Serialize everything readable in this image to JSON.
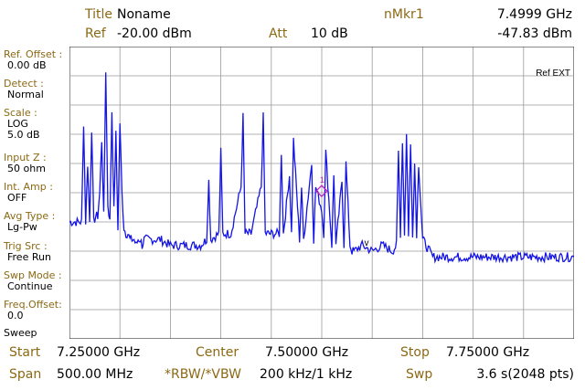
{
  "header": {
    "title_label": "Title",
    "title_value": "Noname",
    "ref_label": "Ref",
    "ref_value": "-20.00 dBm",
    "att_label": "Att",
    "att_value": "10 dB",
    "marker_label": "nMkr1",
    "marker_freq": "7.4999 GHz",
    "marker_level": "-47.83 dBm"
  },
  "sidebar": [
    {
      "label": "Ref. Offset :",
      "value": "0.00 dB"
    },
    {
      "label": "Detect :",
      "value": "Normal"
    },
    {
      "label": "Scale :",
      "value": "LOG",
      "value2": "5.0 dB"
    },
    {
      "label": "Input Z :",
      "value": "50 ohm"
    },
    {
      "label": "Int. Amp :",
      "value": "OFF"
    },
    {
      "label": "Avg Type :",
      "value": "Lg-Pw"
    },
    {
      "label": "Trig Src :",
      "value": "Free Run"
    },
    {
      "label": "Swp Mode :",
      "value": "Continue"
    },
    {
      "label": "Freq.Offset:",
      "value": "0.0"
    },
    {
      "label": "",
      "value": "Sweep"
    }
  ],
  "plot": {
    "ref_ext": "Ref EXT",
    "marker_number": "1",
    "vbw_marker": "v",
    "trace_color": "#1414e6",
    "grid_color": "#9a9a9a",
    "marker_color": "#c020c0"
  },
  "footer": {
    "start_label": "Start",
    "start_value": "7.25000 GHz",
    "center_label": "Center",
    "center_value": "7.50000 GHz",
    "stop_label": "Stop",
    "stop_value": "7.75000 GHz",
    "span_label": "Span",
    "span_value": "500.00 MHz",
    "rbw_label": "*RBW/*VBW",
    "rbw_value": "200 kHz/1 kHz",
    "swp_label": "Swp",
    "swp_value": "3.6 s(2048 pts)"
  },
  "chart_data": {
    "type": "line",
    "x_unit": "GHz",
    "y_unit": "dBm",
    "xlim": [
      7.25,
      7.75
    ],
    "ylim": [
      -70,
      -20
    ],
    "grid": true,
    "series": [
      {
        "x": [
          7.25,
          7.262,
          7.264,
          7.266,
          7.268,
          7.27,
          7.272,
          7.274,
          7.276,
          7.278,
          7.28,
          7.282,
          7.284,
          7.286,
          7.288,
          7.29,
          7.292,
          7.294,
          7.296,
          7.298,
          7.3,
          7.302,
          7.304,
          7.306,
          7.308,
          7.31,
          7.312,
          7.314,
          7.316,
          7.318,
          7.32,
          7.322,
          7.324,
          7.33,
          7.34,
          7.35,
          7.36,
          7.37,
          7.38,
          7.386,
          7.388,
          7.39,
          7.398,
          7.4,
          7.402,
          7.41,
          7.42,
          7.422,
          7.424,
          7.43,
          7.44,
          7.442,
          7.444,
          7.45,
          7.458,
          7.46,
          7.462,
          7.468,
          7.47,
          7.472,
          7.478,
          7.48,
          7.482,
          7.49,
          7.492,
          7.494,
          7.4999,
          7.502,
          7.504,
          7.51,
          7.512,
          7.514,
          7.52,
          7.522,
          7.524,
          7.528,
          7.53,
          7.532,
          7.54,
          7.55,
          7.56,
          7.57,
          7.574,
          7.576,
          7.578,
          7.58,
          7.582,
          7.584,
          7.586,
          7.588,
          7.59,
          7.592,
          7.594,
          7.596,
          7.6,
          7.61,
          7.62,
          7.65,
          7.7,
          7.75
        ],
        "y": [
          -50,
          -50,
          -33,
          -50,
          -40,
          -50,
          -34,
          -50,
          -49,
          -49,
          -45,
          -36,
          -49,
          -24,
          -47,
          -50,
          -31,
          -48,
          -35,
          -51,
          -33,
          -45,
          -51,
          -52,
          -52,
          -53,
          -53,
          -53,
          -54,
          -53,
          -53,
          -54,
          -53,
          -53,
          -53,
          -54,
          -54,
          -54,
          -54,
          -53,
          -43,
          -53,
          -52,
          -38,
          -52,
          -52,
          -44,
          -32,
          -52,
          -52,
          -44,
          -32,
          -52,
          -52,
          -52,
          -38,
          -52,
          -42,
          -52,
          -36,
          -53,
          -44,
          -53,
          -40,
          -53,
          -44,
          -47.83,
          -52,
          -38,
          -54,
          -42,
          -54,
          -43,
          -54,
          -40,
          -54,
          -55,
          -55,
          -54,
          -55,
          -54,
          -55,
          -54,
          -38,
          -52,
          -36,
          -52,
          -35,
          -52,
          -37,
          -52,
          -40,
          -52,
          -40,
          -53,
          -56,
          -56,
          -56,
          -56,
          -56
        ]
      }
    ],
    "marker": {
      "x": 7.4999,
      "y": -47.83,
      "label": "1"
    }
  }
}
